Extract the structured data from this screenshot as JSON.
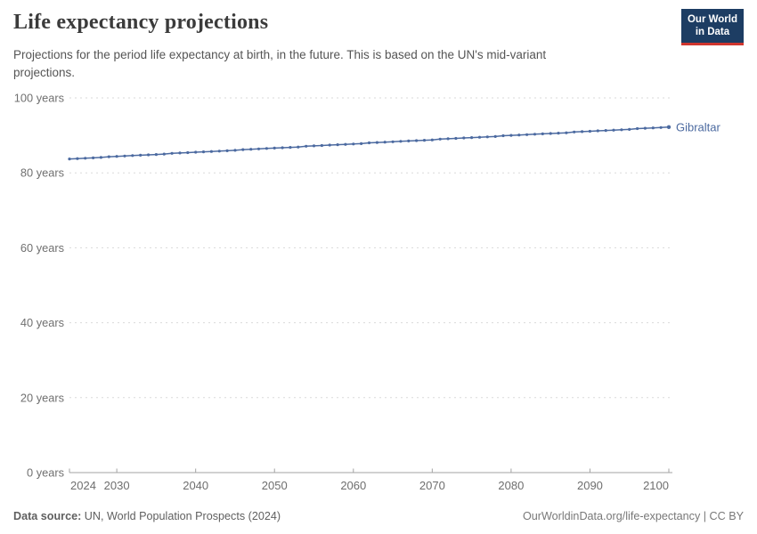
{
  "header": {
    "title": "Life expectancy projections",
    "subtitle": "Projections for the period life expectancy at birth, in the future. This is based on the UN's mid-variant\nprojections.",
    "logo": {
      "line1": "Our World",
      "line2": "in Data",
      "bg_color": "#1d3d63",
      "accent_color": "#cf352e"
    }
  },
  "chart_data": {
    "type": "line",
    "title": "Life expectancy projections",
    "xlabel": "",
    "ylabel": "years",
    "xlim": [
      2024,
      2100
    ],
    "ylim": [
      0,
      100
    ],
    "x_ticks": [
      2024,
      2030,
      2040,
      2050,
      2060,
      2070,
      2080,
      2090,
      2100
    ],
    "y_ticks": [
      0,
      20,
      40,
      60,
      80,
      100
    ],
    "y_tick_suffix": " years",
    "grid": "horizontal-dashed",
    "grid_color": "#dadada",
    "axis_color": "#a3a3a3",
    "tick_label_color": "#6e6e6e",
    "legend_position": "end-of-line-label",
    "series": [
      {
        "name": "Gibraltar",
        "color": "#4c6aa0",
        "x": [
          2024,
          2025,
          2026,
          2027,
          2028,
          2029,
          2030,
          2031,
          2032,
          2033,
          2034,
          2035,
          2036,
          2037,
          2038,
          2039,
          2040,
          2041,
          2042,
          2043,
          2044,
          2045,
          2046,
          2047,
          2048,
          2049,
          2050,
          2051,
          2052,
          2053,
          2054,
          2055,
          2056,
          2057,
          2058,
          2059,
          2060,
          2061,
          2062,
          2063,
          2064,
          2065,
          2066,
          2067,
          2068,
          2069,
          2070,
          2071,
          2072,
          2073,
          2074,
          2075,
          2076,
          2077,
          2078,
          2079,
          2080,
          2081,
          2082,
          2083,
          2084,
          2085,
          2086,
          2087,
          2088,
          2089,
          2090,
          2091,
          2092,
          2093,
          2094,
          2095,
          2096,
          2097,
          2098,
          2099,
          2100
        ],
        "values": [
          83.7,
          83.8,
          83.9,
          84.0,
          84.1,
          84.3,
          84.4,
          84.5,
          84.6,
          84.7,
          84.8,
          84.9,
          85.0,
          85.2,
          85.3,
          85.4,
          85.5,
          85.6,
          85.7,
          85.8,
          85.9,
          86.0,
          86.2,
          86.3,
          86.4,
          86.5,
          86.6,
          86.7,
          86.8,
          86.9,
          87.1,
          87.2,
          87.3,
          87.4,
          87.5,
          87.6,
          87.7,
          87.8,
          88.0,
          88.1,
          88.2,
          88.3,
          88.4,
          88.5,
          88.6,
          88.7,
          88.8,
          89.0,
          89.1,
          89.2,
          89.3,
          89.4,
          89.5,
          89.6,
          89.7,
          89.9,
          90.0,
          90.1,
          90.2,
          90.3,
          90.4,
          90.5,
          90.6,
          90.7,
          90.9,
          91.0,
          91.1,
          91.2,
          91.3,
          91.4,
          91.5,
          91.6,
          91.8,
          91.9,
          92.0,
          92.1,
          92.2
        ]
      }
    ]
  },
  "footer": {
    "source_label": "Data source:",
    "source_text": " UN, World Population Prospects (2024)",
    "credit": "OurWorldinData.org/life-expectancy | CC BY"
  }
}
